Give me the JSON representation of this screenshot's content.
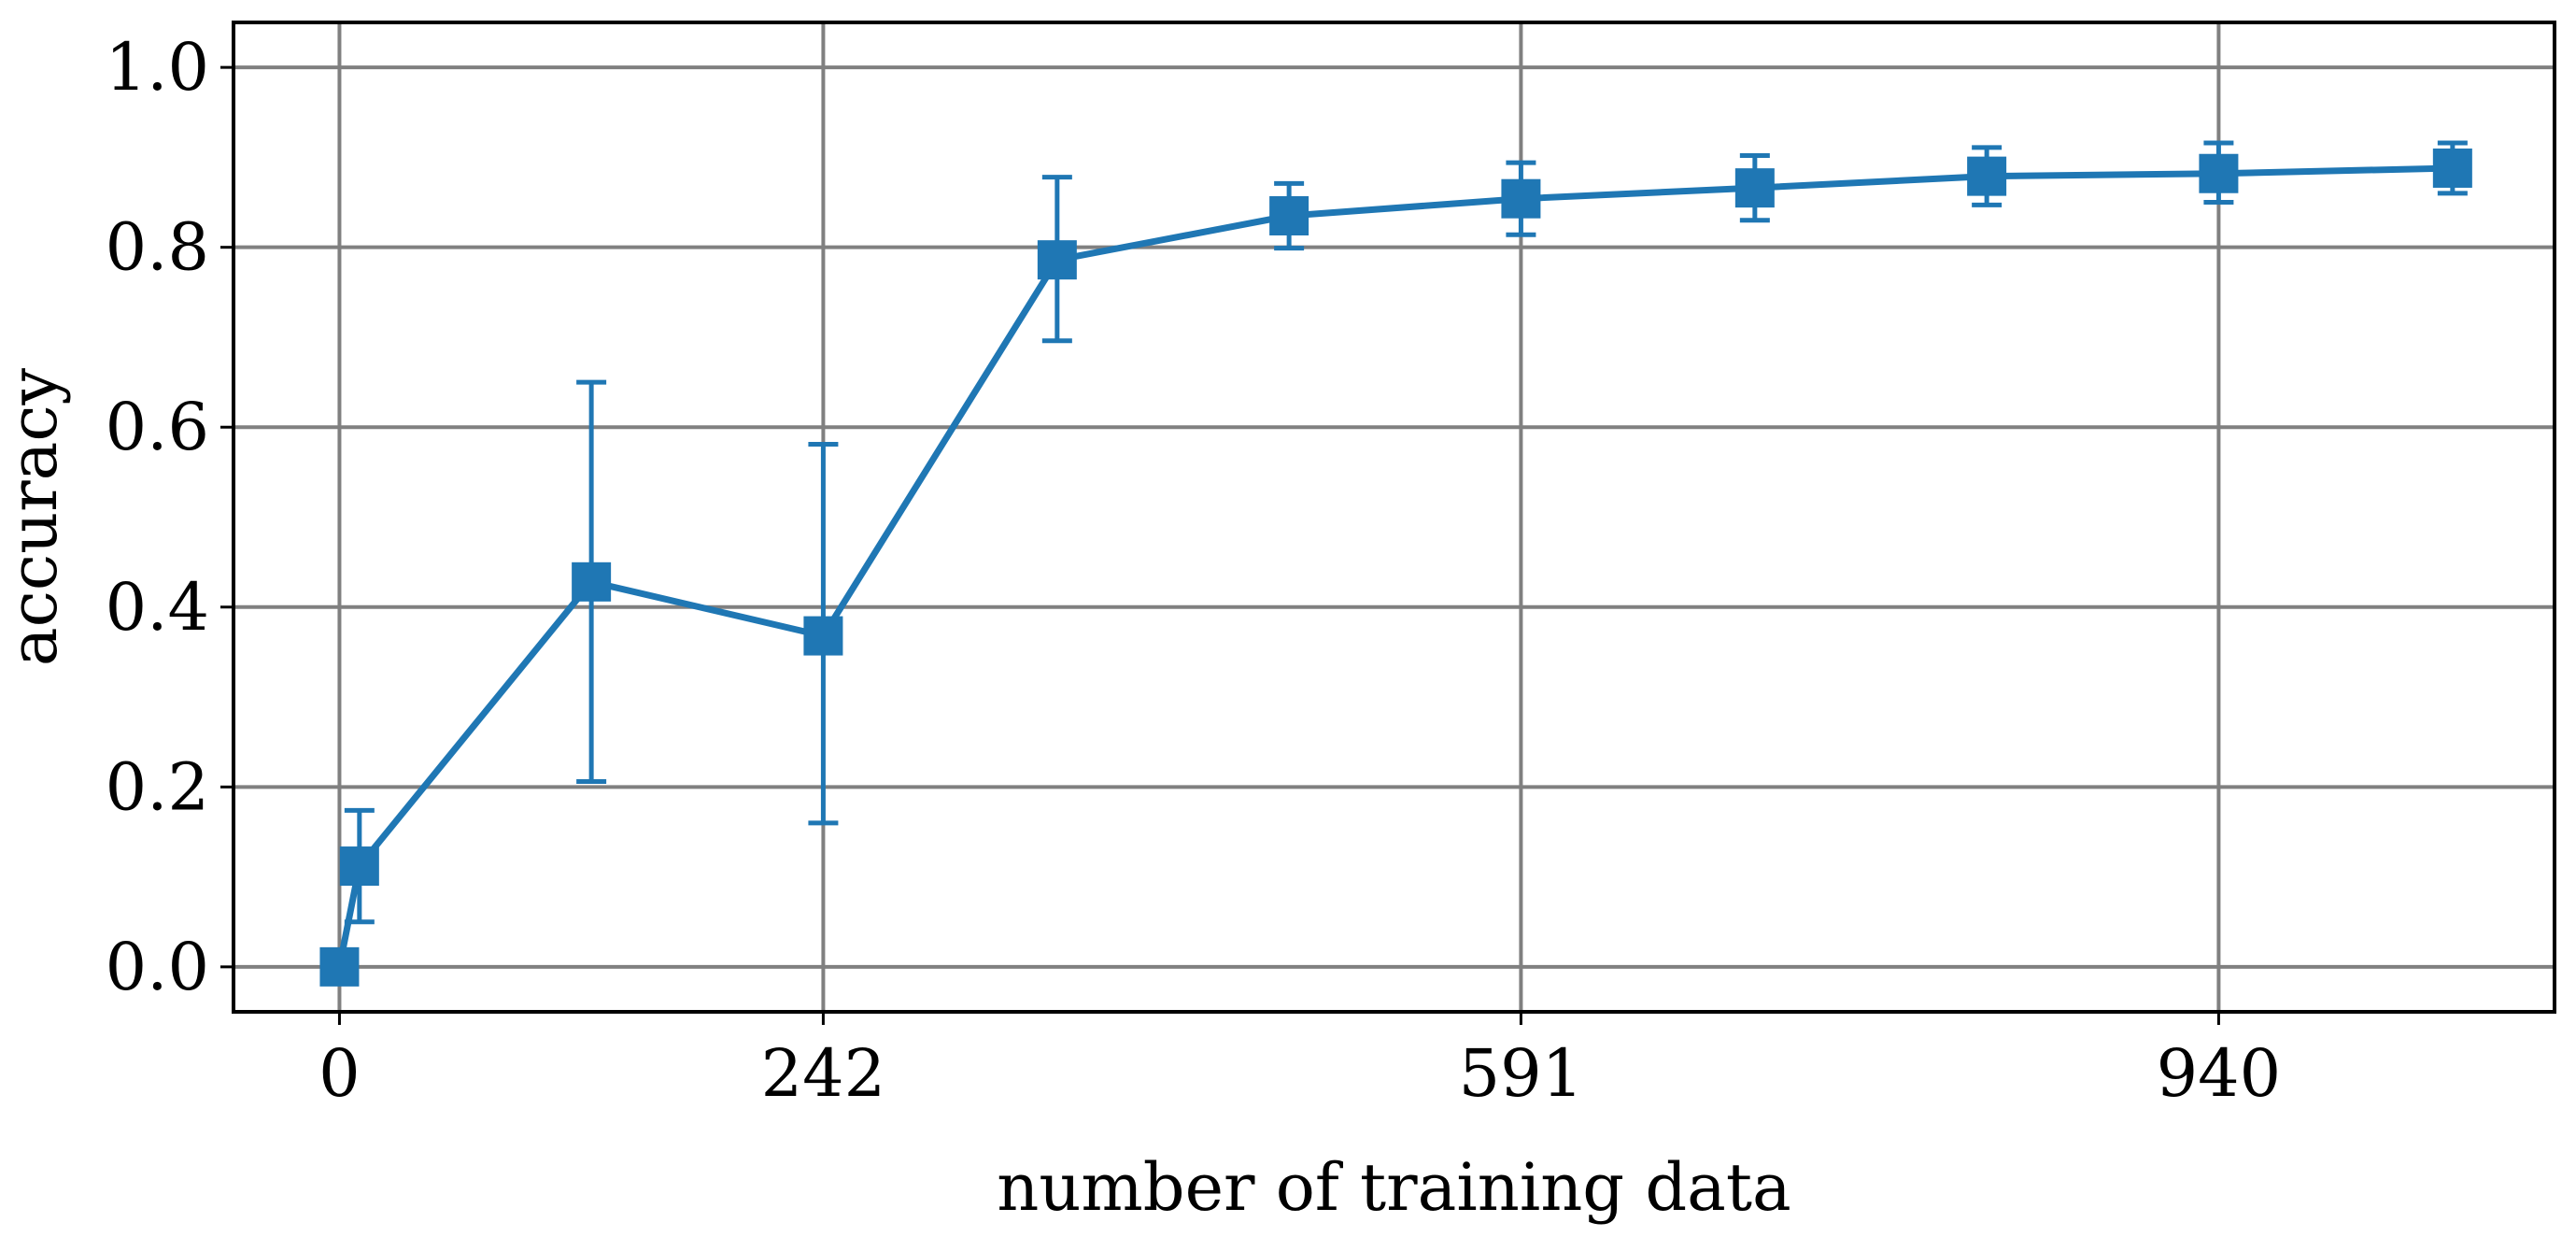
{
  "chart_data": {
    "type": "line",
    "title": "",
    "xlabel": "number of training data",
    "ylabel": "accuracy",
    "xlim": [
      -53,
      1108
    ],
    "ylim": [
      -0.05,
      1.05
    ],
    "xticks": [
      0,
      242,
      591,
      940
    ],
    "xtick_labels": [
      "0",
      "242",
      "591",
      "940"
    ],
    "yticks": [
      0.0,
      0.2,
      0.4,
      0.6,
      0.8,
      1.0
    ],
    "ytick_labels": [
      "0.0",
      "0.2",
      "0.4",
      "0.6",
      "0.8",
      "1.0"
    ],
    "grid": true,
    "legend": false,
    "colors": {
      "series": "#1f77b4",
      "grid": "#808080",
      "frame": "#000000"
    },
    "series": [
      {
        "marker": "square",
        "x": [
          0,
          10,
          126,
          242,
          359,
          475,
          591,
          708,
          824,
          940,
          1057
        ],
        "y": [
          0.0,
          0.112,
          0.428,
          0.368,
          0.786,
          0.835,
          0.854,
          0.866,
          0.879,
          0.882,
          0.888
        ],
        "err_low": [
          0.0,
          0.062,
          0.222,
          0.208,
          0.09,
          0.036,
          0.04,
          0.036,
          0.032,
          0.032,
          0.028
        ],
        "err_high": [
          0.0,
          0.062,
          0.222,
          0.213,
          0.092,
          0.036,
          0.04,
          0.036,
          0.032,
          0.034,
          0.028
        ]
      }
    ]
  }
}
